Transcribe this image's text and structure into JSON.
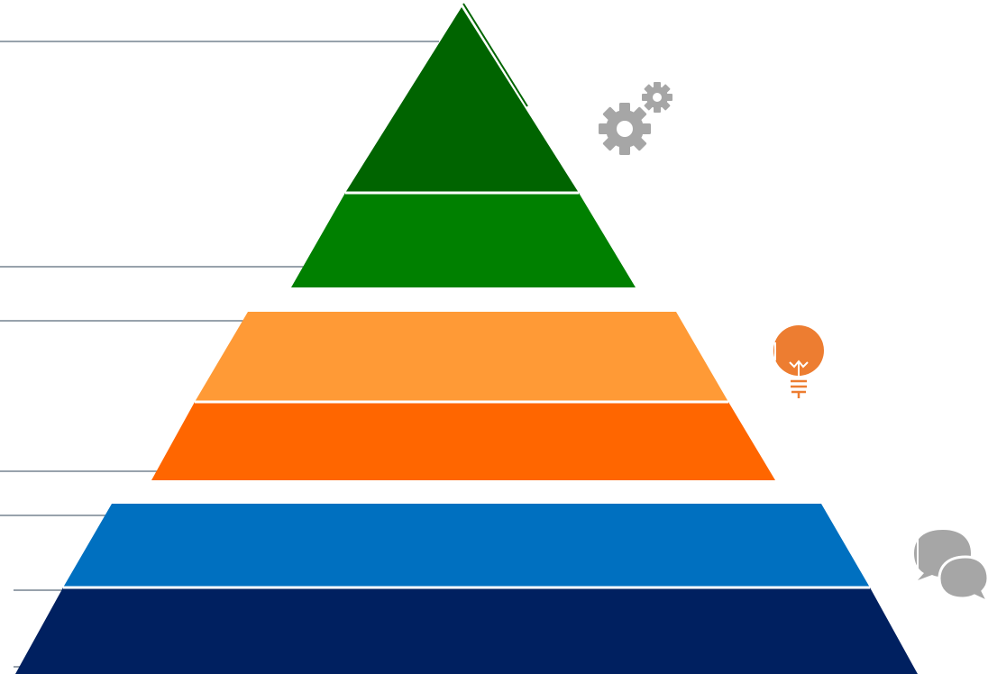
{
  "colors": {
    "background": "#ffffff",
    "guide_line": "#5b6b7a",
    "apex_dark_green": "#006400",
    "upper_green": "#008000",
    "light_orange": "#ff9a36",
    "orange": "#ff6600",
    "blue": "#0070c0",
    "navy": "#002060",
    "icon_gray": "#a6a6a6",
    "icon_orange": "#ed7d31"
  },
  "pyramid": {
    "tiers": [
      {
        "name": "apex",
        "color": "#006400"
      },
      {
        "name": "green-band",
        "color": "#008000"
      },
      {
        "name": "light-orange-band",
        "color": "#ff9a36"
      },
      {
        "name": "orange-band",
        "color": "#ff6600"
      },
      {
        "name": "blue-band",
        "color": "#0070c0"
      },
      {
        "name": "navy-base",
        "color": "#002060"
      }
    ]
  },
  "icons": {
    "top": "gears-icon",
    "middle": "lightbulb-icon",
    "bottom": "chat-bubbles-icon"
  }
}
